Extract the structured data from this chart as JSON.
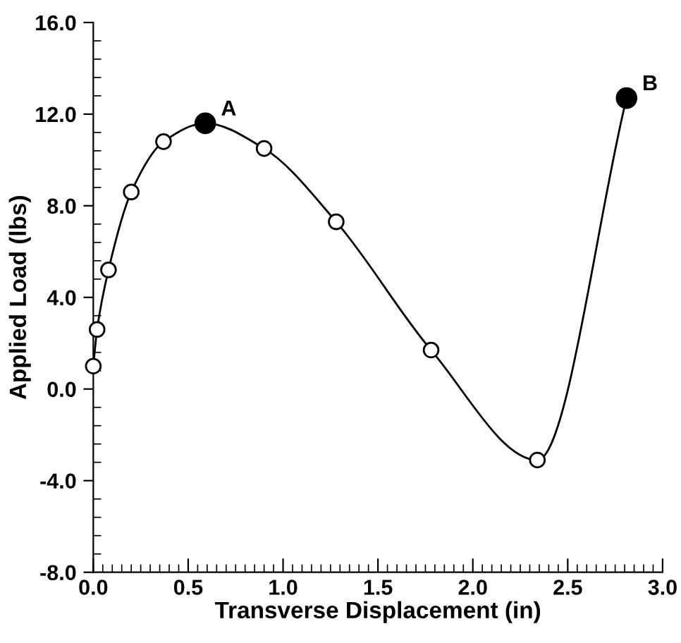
{
  "chart_data": {
    "type": "line",
    "xlabel": "Transverse Displacement (in)",
    "ylabel": "Applied Load (lbs)",
    "xlim": [
      0,
      3.0
    ],
    "ylim": [
      -8.0,
      16.0
    ],
    "xticks": [
      {
        "value": 0,
        "label": "0.0"
      },
      {
        "value": 0.5,
        "label": "0.5"
      },
      {
        "value": 1.0,
        "label": "1.0"
      },
      {
        "value": 1.5,
        "label": "1.5"
      },
      {
        "value": 2.0,
        "label": "2.0"
      },
      {
        "value": 2.5,
        "label": "2.5"
      },
      {
        "value": 3.0,
        "label": "3.0"
      }
    ],
    "yticks": [
      {
        "value": -8,
        "label": "-8.0"
      },
      {
        "value": -4,
        "label": "-4.0"
      },
      {
        "value": 0,
        "label": "0.0"
      },
      {
        "value": 4,
        "label": "4.0"
      },
      {
        "value": 8,
        "label": "8.0"
      },
      {
        "value": 12,
        "label": "12.0"
      },
      {
        "value": 16,
        "label": "16.0"
      }
    ],
    "grid": false,
    "series": [
      {
        "color": "#000000",
        "marker": "circle",
        "line_style": "solid",
        "x": [
          0,
          0.02,
          0.08,
          0.2,
          0.37,
          0.59,
          0.9,
          1.28,
          1.78,
          2.34,
          2.81
        ],
        "values": [
          1.0,
          2.6,
          5.2,
          8.6,
          10.8,
          11.6,
          10.5,
          7.3,
          1.7,
          -3.1,
          12.7
        ]
      },
      {
        "type": "scatter",
        "color": "#000000",
        "marker": "circle",
        "x": [
          0.59,
          2.81
        ],
        "values": [
          11.6,
          12.7
        ]
      }
    ],
    "annotations": [
      {
        "text": "A",
        "x": 0.59,
        "y": 11.6
      },
      {
        "text": "B",
        "x": 2.81,
        "y": 12.7
      }
    ]
  }
}
